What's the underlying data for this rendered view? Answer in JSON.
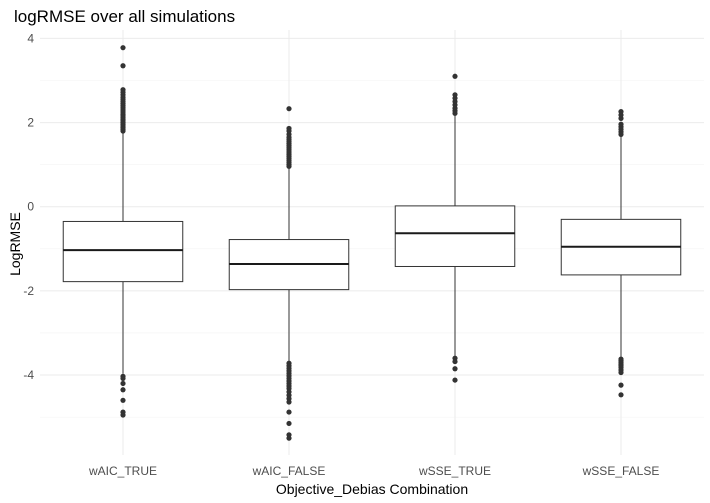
{
  "chart_data": {
    "type": "box",
    "title": "logRMSE over all simulations",
    "xlabel": "Objective_Debias Combination",
    "ylabel": "LogRMSE",
    "ylim": [
      -5.9,
      4.2
    ],
    "yticks": [
      4,
      2,
      0,
      -2,
      -4
    ],
    "grid": true,
    "categories": [
      "wAIC_TRUE",
      "wAIC_FALSE",
      "wSSE_TRUE",
      "wSSE_FALSE"
    ],
    "boxes": [
      {
        "name": "wAIC_TRUE",
        "whisker_low": -3.97,
        "q1": -1.78,
        "median": -1.03,
        "q3": -0.35,
        "whisker_high": 1.78,
        "outliers_high": [
          1.8,
          1.84,
          1.88,
          1.92,
          1.96,
          2.0,
          2.04,
          2.08,
          2.12,
          2.16,
          2.2,
          2.25,
          2.3,
          2.35,
          2.4,
          2.45,
          2.5,
          2.55,
          2.6,
          2.66,
          2.72,
          2.78,
          3.35,
          3.78
        ],
        "outliers_low": [
          -4.03,
          -4.08,
          -4.2,
          -4.35,
          -4.6,
          -4.88,
          -4.95
        ]
      },
      {
        "name": "wAIC_FALSE",
        "whisker_low": -3.68,
        "q1": -1.97,
        "median": -1.36,
        "q3": -0.78,
        "whisker_high": 0.93,
        "outliers_high": [
          0.96,
          1.0,
          1.05,
          1.1,
          1.15,
          1.2,
          1.25,
          1.3,
          1.35,
          1.4,
          1.45,
          1.5,
          1.55,
          1.6,
          1.65,
          1.72,
          1.8,
          1.86,
          2.33
        ],
        "outliers_low": [
          -3.72,
          -3.78,
          -3.84,
          -3.9,
          -3.96,
          -4.02,
          -4.08,
          -4.14,
          -4.2,
          -4.26,
          -4.32,
          -4.4,
          -4.48,
          -4.56,
          -4.64,
          -4.88,
          -5.15,
          -5.42,
          -5.5
        ]
      },
      {
        "name": "wSSE_TRUE",
        "whisker_low": -3.55,
        "q1": -1.42,
        "median": -0.63,
        "q3": 0.02,
        "whisker_high": 2.2,
        "outliers_high": [
          2.22,
          2.28,
          2.34,
          2.42,
          2.5,
          2.58,
          2.66,
          3.1
        ],
        "outliers_low": [
          -3.6,
          -3.68,
          -3.85,
          -4.12
        ]
      },
      {
        "name": "wSSE_FALSE",
        "whisker_low": -3.58,
        "q1": -1.62,
        "median": -0.95,
        "q3": -0.3,
        "whisker_high": 1.68,
        "outliers_high": [
          1.72,
          1.78,
          1.84,
          1.9,
          1.96,
          2.1,
          2.18,
          2.26
        ],
        "outliers_low": [
          -3.62,
          -3.66,
          -3.7,
          -3.74,
          -3.78,
          -3.82,
          -3.88,
          -3.94,
          -4.24,
          -4.47
        ]
      }
    ]
  }
}
